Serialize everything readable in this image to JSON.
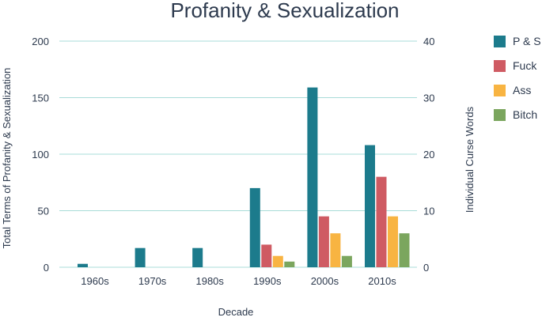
{
  "chart_data": {
    "type": "bar",
    "title": "Profanity & Sexualization",
    "xlabel": "Decade",
    "ylabel_left": "Total Terms of Profanity & Sexualization",
    "ylabel_right": "Individual Curse Words",
    "categories": [
      "1960s",
      "1970s",
      "1980s",
      "1990s",
      "2000s",
      "2010s"
    ],
    "left_axis": {
      "min": 0,
      "max": 200,
      "ticks": [
        "0",
        "50",
        "100",
        "150",
        "200"
      ]
    },
    "right_axis": {
      "min": 0,
      "max": 40,
      "ticks": [
        "0",
        "10",
        "20",
        "30",
        "40"
      ]
    },
    "grid": true,
    "legend_position": "right",
    "series": [
      {
        "name": "P & S",
        "axis": "left",
        "color": "#1c7b8c",
        "values": [
          3,
          17,
          17,
          70,
          159,
          108
        ]
      },
      {
        "name": "Fuck",
        "axis": "right",
        "color": "#cf5b63",
        "values": [
          0,
          0,
          0,
          4,
          9,
          16
        ]
      },
      {
        "name": "Ass",
        "axis": "right",
        "color": "#f8b442",
        "values": [
          0,
          0,
          0,
          2,
          6,
          9
        ]
      },
      {
        "name": "Bitch",
        "axis": "right",
        "color": "#7ba65e",
        "values": [
          0,
          0,
          0,
          1,
          2,
          6
        ]
      }
    ]
  }
}
